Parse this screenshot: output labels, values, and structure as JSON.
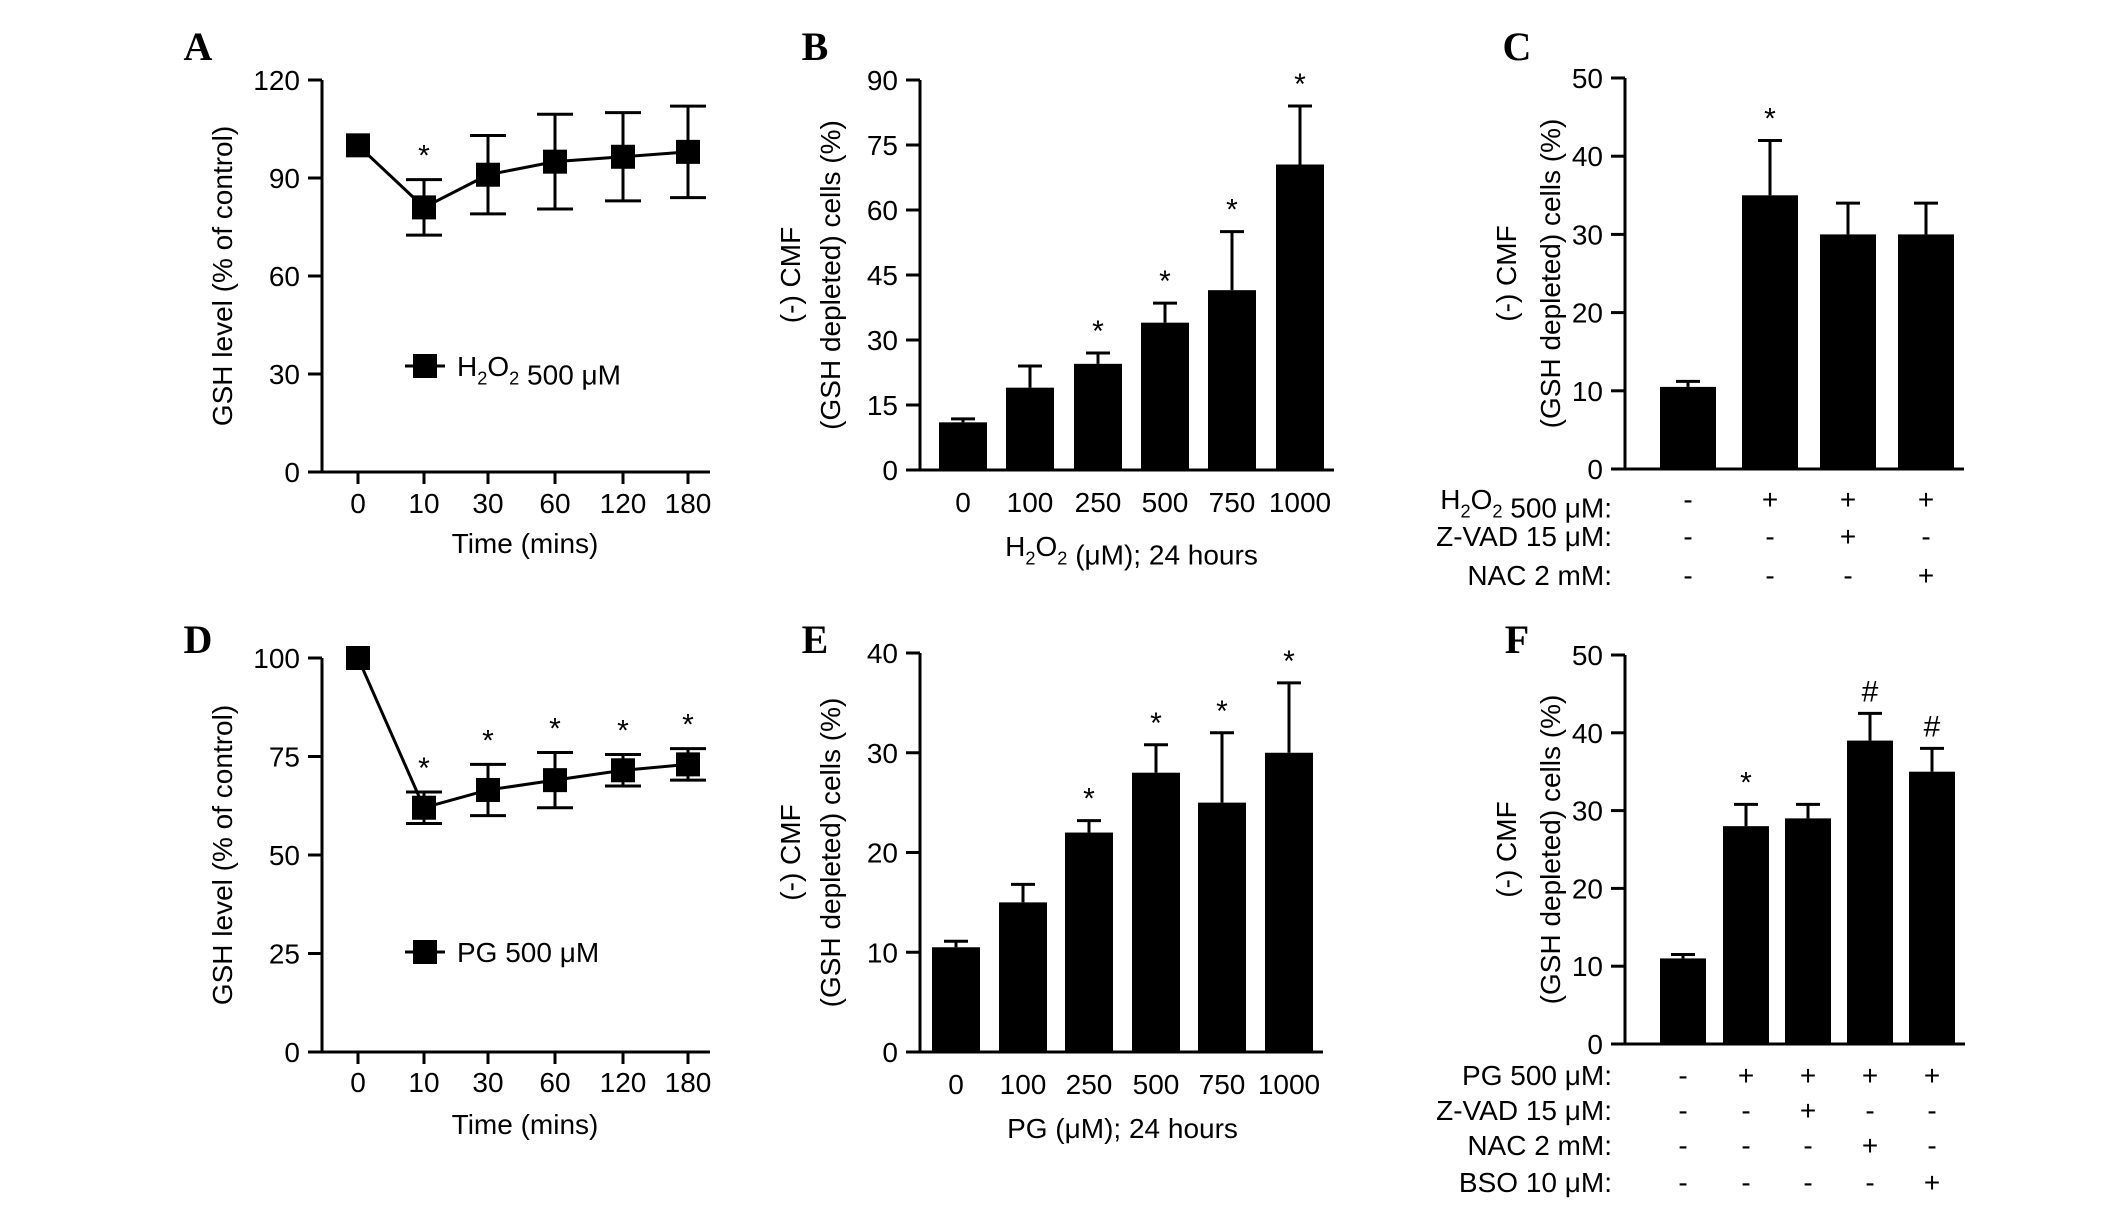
{
  "chart_data": [
    {
      "panel": "A",
      "type": "line",
      "xlabel": "Time (mins)",
      "ylabel": "GSH level (% of control)",
      "ylim": [
        0,
        120
      ],
      "yticks": [
        "0",
        "30",
        "60",
        "90",
        "120"
      ],
      "categories": [
        "0",
        "10",
        "30",
        "60",
        "120",
        "180"
      ],
      "legend": {
        "label": "H2O2 500 μM",
        "position": "center-left"
      },
      "series": [
        {
          "values": [
            100,
            81,
            91,
            95,
            96.5,
            98
          ],
          "errors": [
            0,
            8.5,
            12,
            14.5,
            13.5,
            14
          ],
          "sig": [
            "",
            "*",
            "",
            "",
            "",
            ""
          ]
        }
      ]
    },
    {
      "panel": "B",
      "type": "bar",
      "xlabel": "H2O2 (μM); 24 hours",
      "ylabel_line1": "(-) CMF",
      "ylabel_line2": "(GSH depleted) cells (%)",
      "ylim": [
        0,
        90
      ],
      "yticks": [
        "0",
        "15",
        "30",
        "45",
        "60",
        "75",
        "90"
      ],
      "categories": [
        "0",
        "100",
        "250",
        "500",
        "750",
        "1000"
      ],
      "values": [
        11,
        19,
        24.5,
        34,
        41.5,
        70.5
      ],
      "errors": [
        0.8,
        5,
        2.5,
        4.5,
        13.5,
        13.5
      ],
      "sig": [
        "",
        "",
        "*",
        "*",
        "*",
        "*"
      ]
    },
    {
      "panel": "C",
      "type": "bar",
      "ylabel_line1": "(-) CMF",
      "ylabel_line2": "(GSH depleted) cells (%)",
      "ylim": [
        0,
        50
      ],
      "yticks": [
        "0",
        "10",
        "20",
        "30",
        "40",
        "50"
      ],
      "values": [
        10.5,
        35,
        30,
        30
      ],
      "errors": [
        0.7,
        7,
        4,
        4
      ],
      "sig": [
        "",
        "*",
        "",
        ""
      ],
      "treatments": [
        {
          "label": "H2O2 500 μM:",
          "signs": [
            "-",
            "+",
            "+",
            "+"
          ]
        },
        {
          "label": "Z-VAD 15 μM:",
          "signs": [
            "-",
            "-",
            "+",
            "-"
          ]
        },
        {
          "label": "NAC 2 mM:",
          "signs": [
            "-",
            "-",
            "-",
            "+"
          ]
        }
      ]
    },
    {
      "panel": "D",
      "type": "line",
      "xlabel": "Time (mins)",
      "ylabel": "GSH level (% of control)",
      "ylim": [
        0,
        100
      ],
      "yticks": [
        "0",
        "25",
        "50",
        "75",
        "100"
      ],
      "categories": [
        "0",
        "10",
        "30",
        "60",
        "120",
        "180"
      ],
      "legend": {
        "label": "PG 500 μM",
        "position": "center-left"
      },
      "series": [
        {
          "values": [
            100,
            62,
            66.5,
            69,
            71.5,
            73
          ],
          "errors": [
            0,
            4,
            6.5,
            7,
            4,
            4
          ],
          "sig": [
            "",
            "*",
            "*",
            "*",
            "*",
            "*"
          ]
        }
      ]
    },
    {
      "panel": "E",
      "type": "bar",
      "xlabel": "PG (μM); 24 hours",
      "ylabel_line1": "(-) CMF",
      "ylabel_line2": "(GSH depleted) cells (%)",
      "ylim": [
        0,
        40
      ],
      "yticks": [
        "0",
        "10",
        "20",
        "30",
        "40"
      ],
      "categories": [
        "0",
        "100",
        "250",
        "500",
        "750",
        "1000"
      ],
      "values": [
        10.5,
        15,
        22,
        28,
        25,
        30
      ],
      "errors": [
        0.6,
        1.8,
        1.2,
        2.8,
        7,
        7
      ],
      "sig": [
        "",
        "",
        "*",
        "*",
        "*",
        "*"
      ]
    },
    {
      "panel": "F",
      "type": "bar",
      "ylabel_line1": "(-) CMF",
      "ylabel_line2": "(GSH depleted) cells (%)",
      "ylim": [
        0,
        50
      ],
      "yticks": [
        "0",
        "10",
        "20",
        "30",
        "40",
        "50"
      ],
      "values": [
        11,
        28,
        29,
        39,
        35
      ],
      "errors": [
        0.5,
        2.8,
        1.8,
        3.5,
        3
      ],
      "sig": [
        "",
        "*",
        "",
        "#",
        "#"
      ],
      "treatments": [
        {
          "label": "PG 500 μM:",
          "signs": [
            "-",
            "+",
            "+",
            "+",
            "+"
          ]
        },
        {
          "label": "Z-VAD 15 μM:",
          "signs": [
            "-",
            "-",
            "+",
            "-",
            "-"
          ]
        },
        {
          "label": "NAC 2 mM:",
          "signs": [
            "-",
            "-",
            "-",
            "+",
            "-"
          ]
        },
        {
          "label": "BSO 10 μM:",
          "signs": [
            "-",
            "-",
            "-",
            "-",
            "+"
          ]
        }
      ]
    }
  ]
}
